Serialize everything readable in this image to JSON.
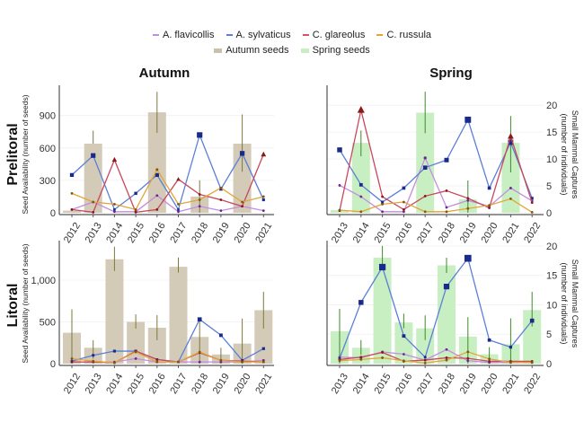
{
  "legend": {
    "species": [
      {
        "name": "A. flavicollis",
        "color": "#c58be0"
      },
      {
        "name": "A. sylvaticus",
        "color": "#5b7fd8"
      },
      {
        "name": "C. glareolus",
        "color": "#d9506a"
      },
      {
        "name": "C. russula",
        "color": "#e3a53a"
      }
    ],
    "seeds": [
      {
        "name": "Autumn seeds",
        "color": "#d3cbb8"
      },
      {
        "name": "Spring seeds",
        "color": "#c8efc2"
      }
    ]
  },
  "columns": {
    "autumn": "Autumn",
    "spring": "Spring"
  },
  "rows": {
    "prelitoral": "Prelitoral",
    "litoral": "Litoral"
  },
  "axes": {
    "left": "Seed Availability (number of seeds)",
    "right_line1": "Small Mammal Captures",
    "right_line2": "(number of individuals)"
  },
  "chart_data": [
    {
      "type": "bar+line",
      "row": "Prelitoral",
      "column": "Autumn",
      "categories": [
        "2012",
        "2013",
        "2014",
        "2015",
        "2016",
        "2017",
        "2018",
        "2019",
        "2020",
        "2021"
      ],
      "ylabel": "Seed Availability (number of seeds)",
      "ylim": [
        0,
        1180
      ],
      "yticks": [
        0,
        300,
        600,
        900
      ],
      "ytick_labels": [
        "0",
        "300",
        "600",
        "900"
      ],
      "axis_side": "left",
      "seeds": {
        "values": [
          20,
          640,
          0,
          0,
          930,
          0,
          150,
          0,
          640,
          0
        ],
        "error": [
          null,
          [
            640,
            760
          ],
          null,
          null,
          [
            740,
            1120
          ],
          null,
          [
            0,
            300
          ],
          null,
          [
            380,
            910
          ],
          null
        ]
      },
      "series": [
        {
          "name": "A. flavicollis",
          "values": [
            30,
            100,
            10,
            10,
            160,
            10,
            60,
            20,
            60,
            20
          ]
        },
        {
          "name": "A. sylvaticus",
          "values": [
            350,
            530,
            30,
            180,
            350,
            30,
            720,
            220,
            550,
            120
          ]
        },
        {
          "name": "C. glareolus",
          "values": [
            30,
            5,
            490,
            5,
            30,
            310,
            170,
            120,
            60,
            540
          ]
        },
        {
          "name": "C. russula",
          "values": [
            180,
            100,
            80,
            30,
            400,
            80,
            120,
            230,
            100,
            150
          ]
        }
      ]
    },
    {
      "type": "bar+line",
      "row": "Prelitoral",
      "column": "Spring",
      "categories": [
        "2013",
        "2014",
        "2015",
        "2016",
        "2017",
        "2018",
        "2019",
        "2020",
        "2021",
        "2022"
      ],
      "ylabel": "Small Mammal Captures (number of individuals)",
      "ylim": [
        0,
        23.7
      ],
      "yticks": [
        0,
        5,
        10,
        15,
        20
      ],
      "ytick_labels": [
        "0",
        "5",
        "10",
        "15",
        "20"
      ],
      "axis_side": "right",
      "seeds": {
        "values": [
          0.5,
          13,
          0,
          0,
          18.6,
          0,
          2.5,
          0,
          13,
          0
        ],
        "error": [
          null,
          [
            10.5,
            15.3
          ],
          null,
          null,
          [
            14.8,
            22.5
          ],
          null,
          [
            0,
            6
          ],
          null,
          [
            7.5,
            18
          ],
          null
        ]
      },
      "series": [
        {
          "name": "A. flavicollis",
          "values": [
            5.1,
            3,
            0.2,
            0.2,
            10.2,
            1,
            2.3,
            1.2,
            4.6,
            2.2
          ]
        },
        {
          "name": "A. sylvaticus",
          "values": [
            11.7,
            5.2,
            2,
            4.6,
            8.4,
            9.8,
            17.3,
            4.6,
            13.1,
            2.7
          ]
        },
        {
          "name": "C. glareolus",
          "values": [
            0.4,
            19.1,
            3,
            0.6,
            3.1,
            4.1,
            2.7,
            0.9,
            14.2,
            1.9
          ]
        },
        {
          "name": "C. russula",
          "values": [
            0.5,
            0.2,
            1.6,
            2,
            0.2,
            0.2,
            0.8,
            1.4,
            2.6,
            0.1
          ]
        }
      ]
    },
    {
      "type": "bar+line",
      "row": "Litoral",
      "column": "Autumn",
      "categories": [
        "2012",
        "2013",
        "2014",
        "2015",
        "2016",
        "2017",
        "2018",
        "2019",
        "2020",
        "2021"
      ],
      "ylabel": "Seed Availability (number of seeds)",
      "ylim": [
        0,
        1473
      ],
      "yticks": [
        0,
        500,
        1000
      ],
      "ytick_labels": [
        "0",
        "500",
        "1,000"
      ],
      "axis_side": "left",
      "seeds": {
        "values": [
          370,
          190,
          1250,
          500,
          430,
          1160,
          320,
          110,
          240,
          640
        ],
        "error": [
          [
            0,
            650
          ],
          [
            60,
            280
          ],
          [
            1110,
            1400
          ],
          [
            420,
            590
          ],
          [
            280,
            580
          ],
          [
            1090,
            1270
          ],
          [
            0,
            520
          ],
          [
            0,
            190
          ],
          [
            0,
            540
          ],
          [
            420,
            860
          ]
        ]
      },
      "series": [
        {
          "name": "A. flavicollis",
          "values": [
            20,
            20,
            20,
            60,
            20,
            20,
            20,
            20,
            20,
            40
          ]
        },
        {
          "name": "A. sylvaticus",
          "values": [
            30,
            100,
            150,
            150,
            50,
            20,
            530,
            340,
            40,
            180
          ]
        },
        {
          "name": "C. glareolus",
          "values": [
            20,
            20,
            10,
            150,
            50,
            20,
            130,
            40,
            30,
            20
          ]
        },
        {
          "name": "C. russula",
          "values": [
            60,
            30,
            10,
            140,
            20,
            20,
            140,
            40,
            20,
            20
          ]
        }
      ]
    },
    {
      "type": "bar+line",
      "row": "Litoral",
      "column": "Spring",
      "categories": [
        "2013",
        "2014",
        "2015",
        "2016",
        "2017",
        "2018",
        "2019",
        "2020",
        "2021",
        "2022"
      ],
      "ylabel": "Small Mammal Captures (number of individuals)",
      "ylim": [
        0,
        20.9
      ],
      "yticks": [
        0,
        5,
        10,
        15,
        20
      ],
      "ytick_labels": [
        "0",
        "5",
        "10",
        "15",
        "20"
      ],
      "axis_side": "right",
      "seeds": {
        "values": [
          5.5,
          2.7,
          18,
          7,
          6,
          16.7,
          4.6,
          1.6,
          3.3,
          9.1
        ],
        "error": [
          [
            0,
            9.3
          ],
          [
            1.5,
            4
          ],
          [
            16,
            20
          ],
          [
            6,
            8.5
          ],
          [
            4,
            8.2
          ],
          [
            15.4,
            18
          ],
          [
            0,
            7.9
          ],
          [
            0,
            2.8
          ],
          [
            0,
            7.7
          ],
          [
            6.3,
            12.2
          ]
        ]
      },
      "series": [
        {
          "name": "A. flavicollis",
          "values": [
            1.1,
            1,
            2,
            1.6,
            0.6,
            2.4,
            0.5,
            0.2,
            0.2,
            0.2
          ]
        },
        {
          "name": "A. sylvaticus",
          "values": [
            0.9,
            10.4,
            16.4,
            4.7,
            1.1,
            13.1,
            17.9,
            4,
            2.8,
            7.3
          ]
        },
        {
          "name": "C. glareolus",
          "values": [
            0.7,
            1.1,
            1.9,
            0.4,
            0.6,
            1,
            0.9,
            0.4,
            0.4,
            0.4
          ]
        },
        {
          "name": "C. russula",
          "values": [
            0.5,
            0.7,
            1,
            0.5,
            0.1,
            0.6,
            2,
            0.8,
            0.2,
            0.2
          ]
        }
      ]
    }
  ]
}
